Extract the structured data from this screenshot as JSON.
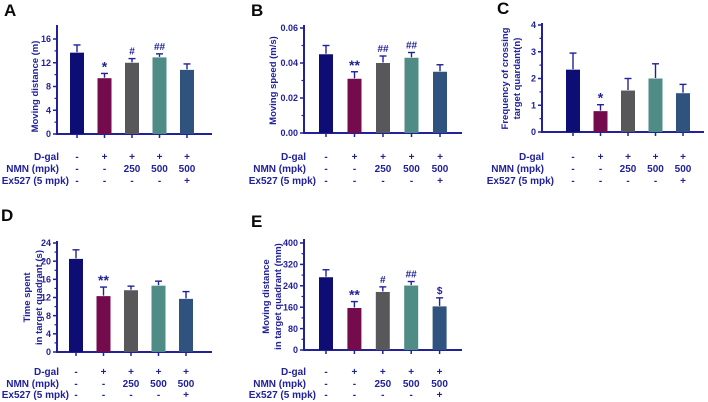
{
  "figure": {
    "background": "#ffffff",
    "colors": {
      "bars": [
        "#0D0D74",
        "#740B4D",
        "#58585A",
        "#4F8C85",
        "#2F527F"
      ],
      "axis": "#21219B",
      "text": "#21219B",
      "error_bar": "#21219B",
      "panel_label": "#0A0A0A"
    },
    "dose_rows": [
      {
        "label": "D-gal",
        "values": [
          "-",
          "+",
          "+",
          "+",
          "+"
        ]
      },
      {
        "label": "NMN (mpk)",
        "values": [
          "-",
          "-",
          "250",
          "500",
          "500"
        ]
      },
      {
        "label": "Ex527 (5 mpk)",
        "values": [
          "-",
          "-",
          "-",
          "-",
          "+"
        ]
      }
    ]
  },
  "chart_data": [
    {
      "panel": "A",
      "type": "bar",
      "title": "",
      "ylabel": "Moving distance (m)",
      "ylabel_lines": [
        "Moving distance (m)"
      ],
      "ylim": [
        0,
        16
      ],
      "yticks": [
        0,
        4,
        8,
        12,
        16
      ],
      "ytick_labels": [
        "0",
        "4",
        "8",
        "12",
        "16"
      ],
      "values": [
        13.7,
        9.4,
        12.0,
        12.9,
        10.8
      ],
      "error_top": [
        15.0,
        10.2,
        12.7,
        13.5,
        11.8
      ],
      "annotations": [
        "",
        "*",
        "#",
        "##",
        ""
      ]
    },
    {
      "panel": "B",
      "type": "bar",
      "title": "",
      "ylabel": "Moving speed (m/s)",
      "ylabel_lines": [
        "Moving speed (m/s)"
      ],
      "ylim": [
        0,
        0.06
      ],
      "yticks": [
        0,
        0.02,
        0.04,
        0.06
      ],
      "ytick_labels": [
        "0.00",
        "0.02",
        "0.04",
        "0.06"
      ],
      "values": [
        0.045,
        0.031,
        0.04,
        0.043,
        0.035
      ],
      "error_top": [
        0.05,
        0.035,
        0.044,
        0.046,
        0.039
      ],
      "annotations": [
        "",
        "**",
        "##",
        "##",
        ""
      ]
    },
    {
      "panel": "C",
      "type": "bar",
      "title": "",
      "ylabel": "Frequency of crossing target quardant(n)",
      "ylabel_lines": [
        "Frequency of crossing",
        "target quardant(n)"
      ],
      "ylim": [
        0,
        4
      ],
      "yticks": [
        0,
        1,
        2,
        3,
        4
      ],
      "ytick_labels": [
        "0",
        "1",
        "2",
        "3",
        "4"
      ],
      "values": [
        2.33,
        0.78,
        1.55,
        2.0,
        1.45
      ],
      "error_top": [
        2.95,
        1.02,
        2.0,
        2.55,
        1.78
      ],
      "annotations": [
        "",
        "*",
        "",
        "",
        ""
      ]
    },
    {
      "panel": "D",
      "type": "bar",
      "title": "",
      "ylabel": "Time spent in target quadrant (s)",
      "ylabel_lines": [
        "Time spent",
        "in target quadrant (s)"
      ],
      "ylim": [
        0,
        24
      ],
      "yticks": [
        0,
        4,
        8,
        12,
        16,
        20,
        24
      ],
      "ytick_labels": [
        "0",
        "4",
        "8",
        "12",
        "16",
        "20",
        "24"
      ],
      "values": [
        20.5,
        12.3,
        13.6,
        14.6,
        11.7
      ],
      "error_top": [
        22.5,
        14.3,
        14.5,
        15.6,
        13.3
      ],
      "annotations": [
        "",
        "**",
        "",
        "",
        ""
      ]
    },
    {
      "panel": "E",
      "type": "bar",
      "title": "",
      "ylabel": "Moving distance in target quadrant (mm)",
      "ylabel_lines": [
        "Moving distance",
        "in target quadrant (mm)"
      ],
      "ylim": [
        0,
        400
      ],
      "yticks": [
        0,
        80,
        160,
        240,
        320,
        400
      ],
      "ytick_labels": [
        "0",
        "80",
        "160",
        "240",
        "320",
        "400"
      ],
      "values": [
        272,
        157,
        217,
        241,
        163
      ],
      "error_top": [
        300,
        181,
        236,
        256,
        195
      ],
      "annotations": [
        "",
        "**",
        "#",
        "##",
        "$"
      ]
    }
  ]
}
